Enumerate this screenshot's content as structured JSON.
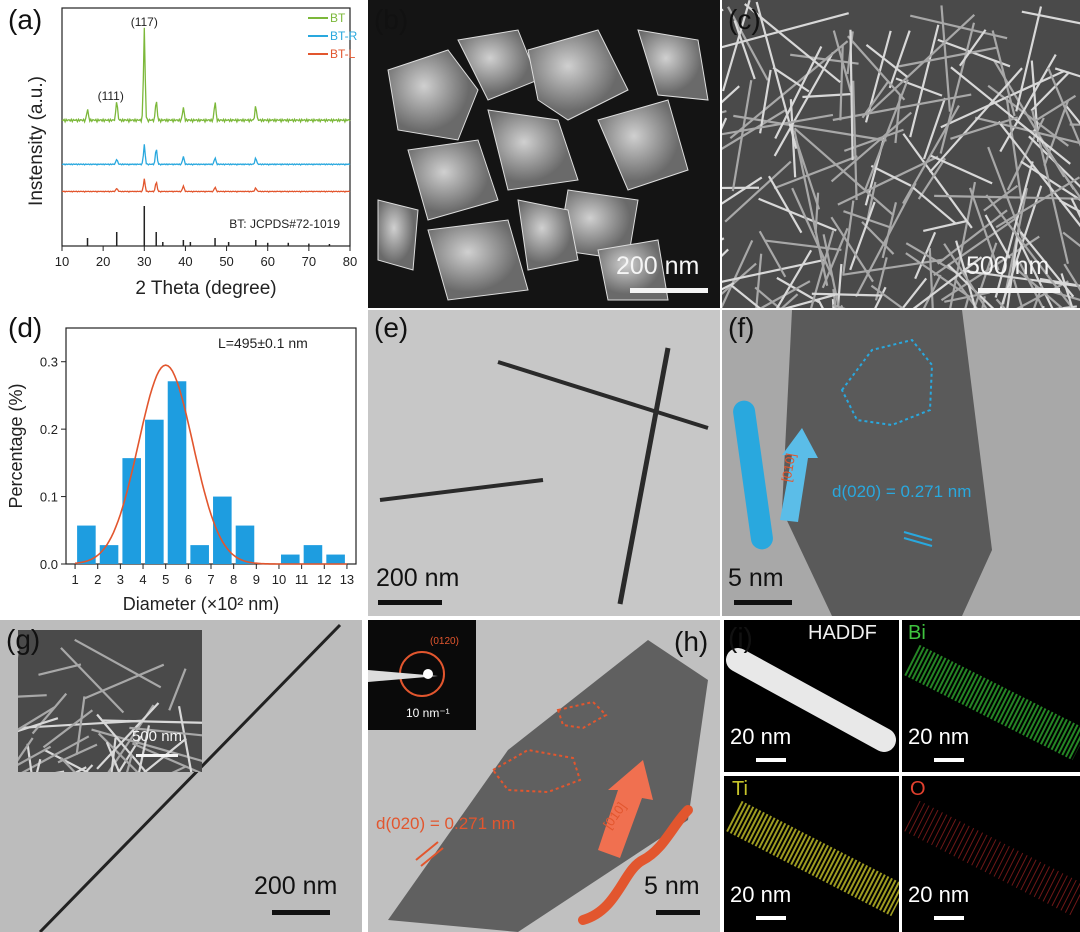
{
  "panels": {
    "a": {
      "label": "(a)",
      "ylabel": "Instensity (a.u.)",
      "xlabel": "2 Theta (degree)",
      "legend": [
        "BT",
        "BT-R",
        "BT-L"
      ],
      "peak_labels": [
        "(117)",
        "(111)"
      ],
      "ref_label": "BT: JCPDS#72-1019",
      "x_ticks": [
        "10",
        "20",
        "30",
        "40",
        "50",
        "60",
        "70",
        "80"
      ]
    },
    "b": {
      "label": "(b)",
      "scale": "200 nm"
    },
    "c": {
      "label": "(c)",
      "scale": "500 nm"
    },
    "d": {
      "label": "(d)",
      "ylabel": "Percentage (%)",
      "xlabel": "Diameter (×10² nm)",
      "annotation": "L=495±0.1 nm",
      "y_ticks": [
        "0.0",
        "0.1",
        "0.2",
        "0.3"
      ],
      "x_ticks": [
        "1",
        "2",
        "3",
        "4",
        "5",
        "6",
        "7",
        "8",
        "9",
        "10",
        "11",
        "12",
        "13"
      ]
    },
    "e": {
      "label": "(e)",
      "scale": "200 nm"
    },
    "f": {
      "label": "(f)",
      "scale": "5 nm",
      "direction": "[010]",
      "spacing": "d(020) = 0.271 nm"
    },
    "g": {
      "label": "(g)",
      "scale": "200 nm",
      "inset_scale": "500 nm"
    },
    "h": {
      "label": "(h)",
      "scale": "5 nm",
      "direction": "[010]",
      "spacing": "d(020) = 0.271 nm",
      "saed_label": "(0120)",
      "saed_scale": "10 nm⁻¹"
    },
    "i": {
      "label": "(i)",
      "haddf": "HADDF",
      "bi": "Bi",
      "ti": "Ti",
      "o": "O",
      "scale": "20 nm"
    }
  },
  "colors": {
    "bt": "#7cb83a",
    "bt_r": "#29a8de",
    "bt_l": "#e2562e",
    "bar_fill": "#1e9de0",
    "fit_line": "#e2562e",
    "annotation_blue": "#29a8de",
    "annotation_orange": "#e2562e"
  },
  "chart_data": [
    {
      "type": "line",
      "xlabel": "2 Theta (degree)",
      "ylabel": "Instensity (a.u.)",
      "xlim": [
        10,
        80
      ],
      "series": [
        {
          "name": "BT",
          "peaks": [
            [
              16.2,
              0.12
            ],
            [
              23.3,
              0.22
            ],
            [
              30.0,
              1.0
            ],
            [
              32.9,
              0.22
            ],
            [
              39.5,
              0.14
            ],
            [
              47.2,
              0.2
            ],
            [
              57.1,
              0.16
            ]
          ]
        },
        {
          "name": "BT-R",
          "peaks": [
            [
              23.3,
              0.15
            ],
            [
              30.0,
              0.55
            ],
            [
              32.9,
              0.45
            ],
            [
              39.5,
              0.22
            ],
            [
              47.2,
              0.18
            ],
            [
              57.1,
              0.18
            ]
          ]
        },
        {
          "name": "BT-L",
          "peaks": [
            [
              23.3,
              0.12
            ],
            [
              30.0,
              0.45
            ],
            [
              32.9,
              0.35
            ],
            [
              39.5,
              0.2
            ],
            [
              47.2,
              0.15
            ],
            [
              57.1,
              0.13
            ]
          ]
        }
      ]
    },
    {
      "type": "bar",
      "xlabel": "Diameter (×10² nm)",
      "ylabel": "Percentage (%)",
      "ylim": [
        0,
        0.35
      ],
      "categories": [
        1.5,
        2.5,
        3.5,
        4.5,
        5.5,
        6.5,
        7.5,
        8.5,
        10.5,
        11.5,
        12.5
      ],
      "values": [
        0.057,
        0.028,
        0.157,
        0.214,
        0.271,
        0.028,
        0.1,
        0.057,
        0.014,
        0.028,
        0.014
      ],
      "fit": {
        "type": "gaussian",
        "mean": 5.0,
        "sd": 1.2,
        "peak": 0.295
      }
    }
  ]
}
